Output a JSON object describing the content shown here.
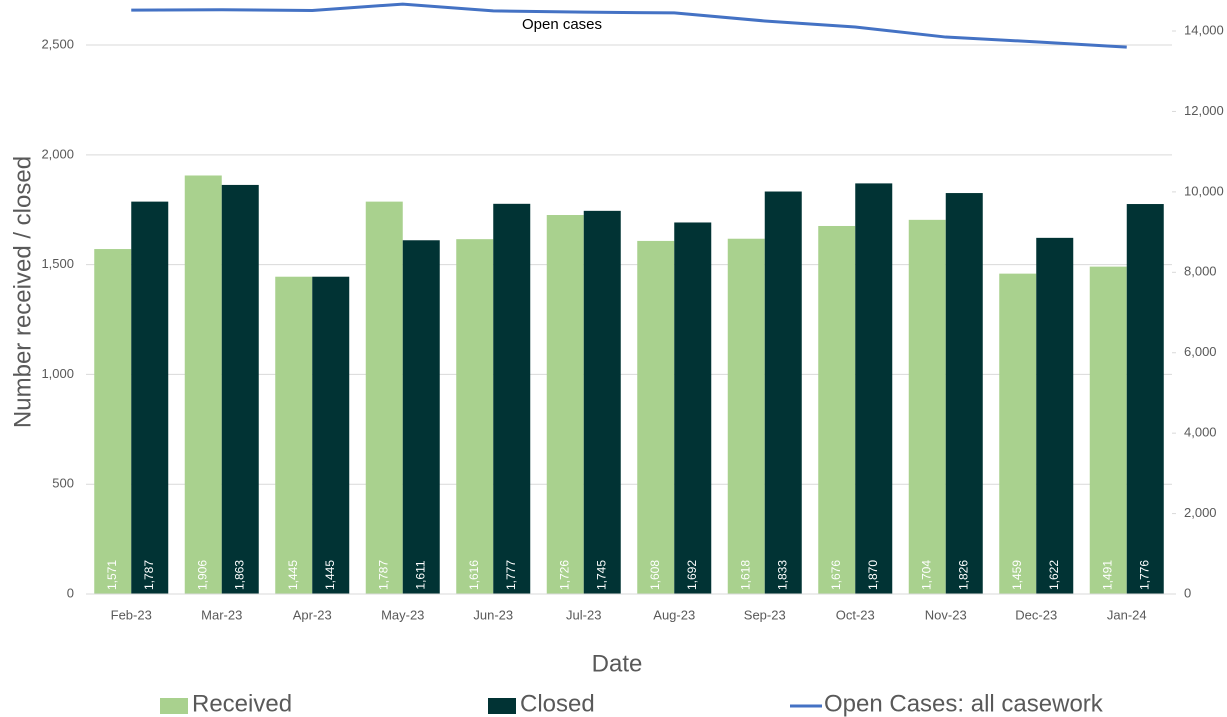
{
  "chart_data": {
    "type": "bar",
    "y_label": "Number received / closed",
    "x_label": "Date",
    "annotation": "Open cases",
    "categories": [
      "Feb-23",
      "Mar-23",
      "Apr-23",
      "May-23",
      "Jun-23",
      "Jul-23",
      "Aug-23",
      "Sep-23",
      "Oct-23",
      "Nov-23",
      "Dec-23",
      "Jan-24"
    ],
    "series": [
      {
        "name": "Received",
        "color": "#a9d18e",
        "type": "bar",
        "values": [
          1571,
          1906,
          1445,
          1787,
          1616,
          1726,
          1608,
          1618,
          1676,
          1704,
          1459,
          1491
        ],
        "value_labels": [
          "1,571",
          "1,906",
          "1,445",
          "1,787",
          "1,616",
          "1,726",
          "1,608",
          "1,618",
          "1,676",
          "1,704",
          "1,459",
          "1,491"
        ]
      },
      {
        "name": "Closed",
        "color": "#013334",
        "type": "bar",
        "values": [
          1787,
          1863,
          1445,
          1611,
          1777,
          1745,
          1692,
          1833,
          1870,
          1826,
          1622,
          1776
        ],
        "value_labels": [
          "1,787",
          "1,863",
          "1,445",
          "1,611",
          "1,777",
          "1,745",
          "1,692",
          "1,833",
          "1,870",
          "1,826",
          "1,622",
          "1,776"
        ]
      },
      {
        "name": "Open Cases: all casework",
        "color": "#4472c4",
        "type": "line",
        "axis": "y2",
        "values": [
          14520,
          14530,
          14510,
          14670,
          14500,
          14470,
          14450,
          14250,
          14100,
          13850,
          13730,
          13600
        ]
      }
    ],
    "ylim": [
      0,
      2687
    ],
    "yticks": [
      0,
      500,
      {
        "value": 1000,
        "label": "1,000"
      },
      {
        "value": 1500,
        "label": "1,500"
      },
      {
        "value": 2000,
        "label": "2,000"
      },
      {
        "value": 2500,
        "label": "2,500"
      }
    ],
    "y2lim": [
      0,
      14672
    ],
    "y2ticks": [
      0,
      {
        "value": 2000,
        "label": "2,000"
      },
      {
        "value": 4000,
        "label": "4,000"
      },
      {
        "value": 6000,
        "label": "6,000"
      },
      {
        "value": 8000,
        "label": "8,000"
      },
      {
        "value": 10000,
        "label": "10,000"
      },
      {
        "value": 12000,
        "label": "12,000"
      },
      {
        "value": 14000,
        "label": "14,000"
      }
    ],
    "grid": true,
    "legend": "bottom"
  }
}
